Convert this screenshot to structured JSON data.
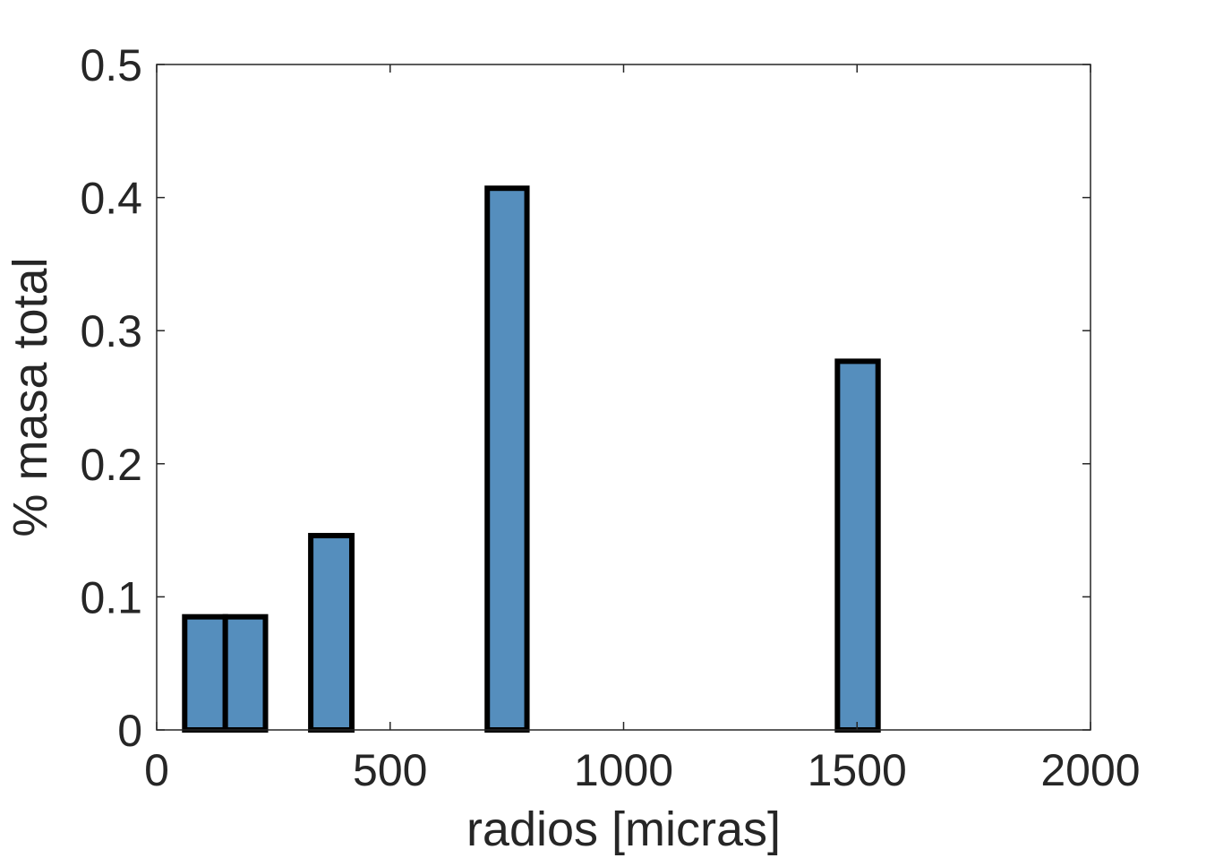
{
  "chart_data": {
    "type": "bar",
    "title": "",
    "xlabel": "radios [micras]",
    "ylabel": "% masa total",
    "xlim": [
      0,
      2000
    ],
    "ylim": [
      0,
      0.5
    ],
    "xticks": [
      0,
      500,
      1000,
      1500,
      2000
    ],
    "yticks": [
      0,
      0.1,
      0.2,
      0.3,
      0.4,
      0.5
    ],
    "xtick_labels": [
      "0",
      "500",
      "1000",
      "1500",
      "2000"
    ],
    "ytick_labels": [
      "0",
      "0.1",
      "0.2",
      "0.3",
      "0.4",
      "0.5"
    ],
    "bars": [
      {
        "x0": 60,
        "x1": 147,
        "value": 0.085
      },
      {
        "x0": 147,
        "x1": 233,
        "value": 0.085
      },
      {
        "x0": 330,
        "x1": 418,
        "value": 0.146
      },
      {
        "x0": 708,
        "x1": 793,
        "value": 0.407
      },
      {
        "x0": 1458,
        "x1": 1545,
        "value": 0.277
      }
    ],
    "bar_color": "#558ebd",
    "edge_color": "#000000",
    "grid": false
  }
}
